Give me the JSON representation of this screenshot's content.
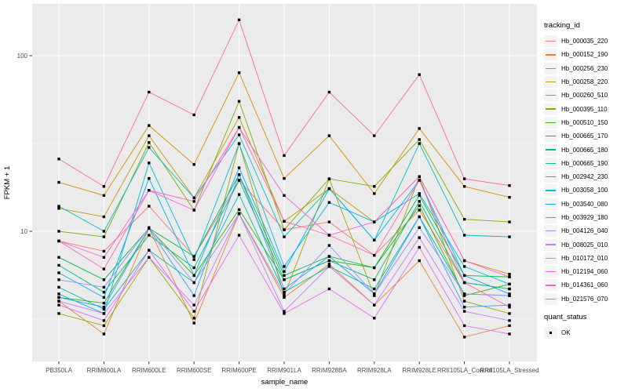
{
  "figure": {
    "bg": "#FFFFFF",
    "panel_bg": "#EBEBEB",
    "grid_color": "#FFFFFF",
    "axis_text_color": "#4D4D4D",
    "tick_color": "#333333",
    "title_color": "#000000"
  },
  "legend": {
    "tracking_title": "tracking_id",
    "quant_title": "quant_status",
    "quant_items": [
      {
        "label": "OK",
        "marker": "black-square"
      }
    ],
    "key_bg": "#F4F4F4",
    "position": "right"
  },
  "chart_data": {
    "type": "line",
    "title": "",
    "xlabel": "sample_name",
    "ylabel": "FPKM + 1",
    "y_scale": "log10",
    "ylim": [
      1.8,
      195
    ],
    "y_major_ticks": [
      100,
      10
    ],
    "y_tick_labels": [
      "100",
      "10"
    ],
    "y_minor_ticks": [
      31.62,
      3.162
    ],
    "grid": true,
    "legend_position": "right",
    "point_marker": "filled-black-square",
    "categories": [
      "PB350LA",
      "RRIM600LA",
      "RRIM600LE",
      "RRIM600SE",
      "RRIM600PE",
      "RRIM901LA",
      "RRIM928BA",
      "RRIM928LA",
      "RRIM928LE",
      "RRII105LA_Control",
      "RRII105LA_Stressed"
    ],
    "series": [
      {
        "name": "Hb_000035_220",
        "color": "#F8766D",
        "quant_status": "OK",
        "values": [
          8.8,
          7.7,
          13.9,
          7.2,
          19.5,
          10.2,
          11.3,
          7.3,
          13.2,
          5.1,
          4.7
        ]
      },
      {
        "name": "Hb_000152_190",
        "color": "#EA8331",
        "quant_status": "OK",
        "values": [
          4.0,
          2.6,
          10.4,
          3.0,
          12.6,
          4.2,
          6.5,
          3.8,
          6.8,
          2.5,
          2.9
        ]
      },
      {
        "name": "Hb_000256_230",
        "color": "#D89000",
        "quant_status": "OK",
        "values": [
          19.0,
          16.0,
          40.0,
          24.0,
          80.0,
          20.0,
          35.0,
          16.4,
          38.5,
          18.0,
          15.6
        ]
      },
      {
        "name": "Hb_000258_220",
        "color": "#C09B00",
        "quant_status": "OK",
        "values": [
          13.5,
          12.1,
          35.0,
          15.5,
          44.5,
          11.4,
          17.5,
          11.3,
          20.5,
          6.8,
          5.7
        ]
      },
      {
        "name": "Hb_000260_510",
        "color": "#A3A500",
        "quant_status": "OK",
        "values": [
          3.4,
          2.9,
          7.1,
          3.2,
          31.6,
          4.3,
          19.9,
          4.3,
          20.5,
          4.0,
          3.4
        ]
      },
      {
        "name": "Hb_000395_110",
        "color": "#7CAE00",
        "quant_status": "OK",
        "values": [
          10.0,
          9.3,
          32.0,
          13.2,
          55.0,
          10.2,
          19.9,
          18.0,
          33.3,
          11.7,
          11.3
        ]
      },
      {
        "name": "Hb_000510_150",
        "color": "#39B600",
        "quant_status": "OK",
        "values": [
          4.2,
          3.9,
          10.4,
          5.6,
          13.3,
          5.3,
          6.8,
          6.2,
          14.0,
          4.3,
          5.0
        ]
      },
      {
        "name": "Hb_000665_170",
        "color": "#00BB4E",
        "quant_status": "OK",
        "values": [
          7.1,
          5.3,
          10.4,
          7.2,
          21.0,
          5.6,
          7.2,
          6.2,
          16.0,
          5.6,
          5.5
        ]
      },
      {
        "name": "Hb_000665_180",
        "color": "#00BF7D",
        "quant_status": "OK",
        "values": [
          6.4,
          4.5,
          9.5,
          6.2,
          19.5,
          5.3,
          6.8,
          5.3,
          14.8,
          5.1,
          4.7
        ]
      },
      {
        "name": "Hb_000665_190",
        "color": "#00C1A3",
        "quant_status": "OK",
        "values": [
          4.8,
          3.6,
          7.8,
          5.1,
          16.2,
          4.5,
          6.3,
          4.7,
          12.1,
          4.4,
          4.3
        ]
      },
      {
        "name": "Hb_002942_230",
        "color": "#00BFC4",
        "quant_status": "OK",
        "values": [
          13.9,
          10.0,
          30.0,
          15.5,
          35.4,
          9.3,
          17.5,
          8.9,
          31.6,
          9.5,
          9.3
        ]
      },
      {
        "name": "Hb_003058_100",
        "color": "#00BAE0",
        "quant_status": "OK",
        "values": [
          4.4,
          3.4,
          24.5,
          6.9,
          31.6,
          6.3,
          14.6,
          11.3,
          16.4,
          6.3,
          5.0
        ]
      },
      {
        "name": "Hb_003540_080",
        "color": "#00B0F6",
        "quant_status": "OK",
        "values": [
          5.8,
          4.2,
          20.0,
          5.6,
          23.0,
          5.9,
          17.5,
          8.9,
          19.5,
          5.6,
          4.4
        ]
      },
      {
        "name": "Hb_003929_180",
        "color": "#35A2FF",
        "quant_status": "OK",
        "values": [
          4.2,
          3.7,
          10.4,
          4.3,
          21.0,
          4.7,
          7.2,
          4.4,
          12.1,
          3.7,
          3.8
        ]
      },
      {
        "name": "Hb_004126_040",
        "color": "#9590FF",
        "quant_status": "OK",
        "values": [
          5.3,
          4.8,
          10.5,
          5.1,
          12.6,
          4.4,
          8.3,
          4.4,
          10.5,
          4.4,
          4.3
        ]
      },
      {
        "name": "Hb_008025_010",
        "color": "#C77CFF",
        "quant_status": "OK",
        "values": [
          4.0,
          3.4,
          7.1,
          3.8,
          12.6,
          3.5,
          6.3,
          3.8,
          9.2,
          3.5,
          3.1
        ]
      },
      {
        "name": "Hb_010172_010",
        "color": "#E76BF3",
        "quant_status": "OK",
        "values": [
          3.8,
          3.1,
          7.8,
          3.5,
          9.5,
          3.4,
          4.7,
          3.2,
          8.1,
          2.9,
          2.6
        ]
      },
      {
        "name": "Hb_012194_060",
        "color": "#FA62DB",
        "quant_status": "OK",
        "values": [
          8.8,
          7.1,
          17.1,
          13.2,
          39.0,
          16.0,
          9.5,
          11.3,
          20.5,
          6.8,
          5.5
        ]
      },
      {
        "name": "Hb_014361_060",
        "color": "#FF62BC",
        "quant_status": "OK",
        "values": [
          8.8,
          6.1,
          17.1,
          14.8,
          39.0,
          11.4,
          9.5,
          7.3,
          19.5,
          5.1,
          3.7
        ]
      },
      {
        "name": "Hb_021576_070",
        "color": "#FF6A98",
        "quant_status": "OK",
        "values": [
          25.8,
          18.0,
          62.0,
          46.0,
          160.0,
          27.0,
          62.0,
          35.0,
          78.0,
          19.9,
          18.2
        ]
      }
    ]
  }
}
